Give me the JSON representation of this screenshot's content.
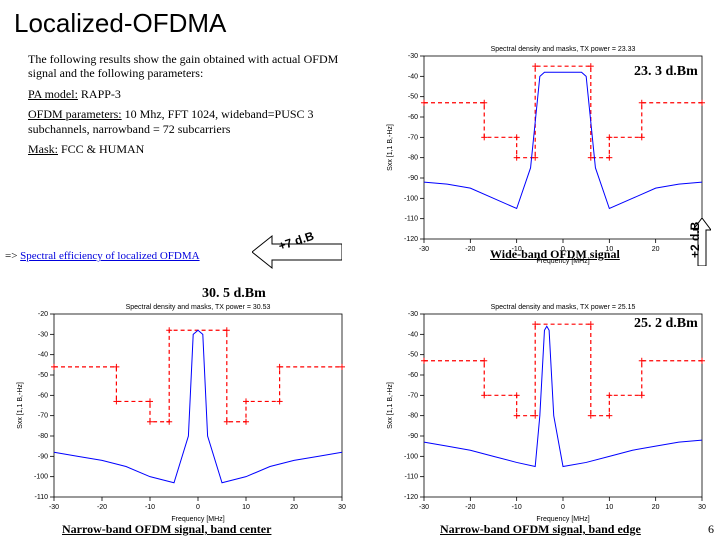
{
  "title": "Localized-OFDMA",
  "intro": {
    "lead": "The following results show the gain obtained with actual OFDM signal and the following parameters:",
    "pa": {
      "label": "PA model:",
      "value": "RAPP-3"
    },
    "ofdm": {
      "label": "OFDM parameters:",
      "value": "10 Mhz, FFT 1024, wideband=PUSC 3 subchannels, narrowband = 72 subcarriers"
    },
    "mask": {
      "label": "Mask:",
      "value": "FCC & HUMAN"
    }
  },
  "link": {
    "prefix": "=> ",
    "text": "Spectral efficiency of localized OFDMA"
  },
  "annotations": {
    "tr": "23. 3 d.Bm",
    "bl": "30. 5 d.Bm",
    "br": "25. 2 d.Bm",
    "arrow_h": "+7 d.B",
    "arrow_v": "+2 d.B"
  },
  "captions": {
    "tr": "Wide-band OFDM signal",
    "bl": "Narrow-band OFDM signal, band center",
    "br": "Narrow-band OFDM signal, band edge"
  },
  "page_number": "6",
  "chart_style": {
    "type": "line",
    "line_color": "#0000ff",
    "mask_color": "#ff0000",
    "mask_dash": "4 3",
    "axis_color": "#000000",
    "grid_color": "#000000",
    "background": "#ffffff",
    "xlabel": "Frequency [MHz]",
    "ylabel": "Sxx [1,1 B,-Hz]",
    "xlim": [
      -30,
      30
    ],
    "xtick_step": 10,
    "axis_fontsize": 7,
    "title_fontsize": 7
  },
  "charts": {
    "tr": {
      "title": "Spectral density and masks, TX power = 23.33",
      "ylim": [
        -120,
        -30
      ],
      "ytick_step": 10,
      "signal": [
        [
          -30,
          -92
        ],
        [
          -25,
          -93
        ],
        [
          -20,
          -95
        ],
        [
          -15,
          -100
        ],
        [
          -10,
          -105
        ],
        [
          -7,
          -85
        ],
        [
          -5,
          -40
        ],
        [
          -4,
          -38
        ],
        [
          0,
          -38
        ],
        [
          4,
          -38
        ],
        [
          5,
          -40
        ],
        [
          7,
          -85
        ],
        [
          10,
          -105
        ],
        [
          15,
          -100
        ],
        [
          20,
          -95
        ],
        [
          25,
          -93
        ],
        [
          30,
          -92
        ]
      ],
      "mask": [
        [
          -30,
          -53
        ],
        [
          -17,
          -53
        ],
        [
          -17,
          -70
        ],
        [
          -10,
          -70
        ],
        [
          -10,
          -80
        ],
        [
          -6,
          -80
        ],
        [
          -6,
          -35
        ],
        [
          6,
          -35
        ],
        [
          6,
          -80
        ],
        [
          10,
          -80
        ],
        [
          10,
          -70
        ],
        [
          17,
          -70
        ],
        [
          17,
          -53
        ],
        [
          30,
          -53
        ]
      ]
    },
    "bl": {
      "title": "Spectral density and masks, TX power = 30.53",
      "ylim": [
        -110,
        -20
      ],
      "ytick_step": 10,
      "signal": [
        [
          -30,
          -88
        ],
        [
          -25,
          -90
        ],
        [
          -20,
          -92
        ],
        [
          -15,
          -95
        ],
        [
          -10,
          -100
        ],
        [
          -5,
          -103
        ],
        [
          -2,
          -80
        ],
        [
          -1,
          -30
        ],
        [
          0,
          -28
        ],
        [
          1,
          -30
        ],
        [
          2,
          -80
        ],
        [
          5,
          -103
        ],
        [
          10,
          -100
        ],
        [
          15,
          -95
        ],
        [
          20,
          -92
        ],
        [
          25,
          -90
        ],
        [
          30,
          -88
        ]
      ],
      "mask": [
        [
          -30,
          -46
        ],
        [
          -17,
          -46
        ],
        [
          -17,
          -63
        ],
        [
          -10,
          -63
        ],
        [
          -10,
          -73
        ],
        [
          -6,
          -73
        ],
        [
          -6,
          -28
        ],
        [
          6,
          -28
        ],
        [
          6,
          -73
        ],
        [
          10,
          -73
        ],
        [
          10,
          -63
        ],
        [
          17,
          -63
        ],
        [
          17,
          -46
        ],
        [
          30,
          -46
        ]
      ]
    },
    "br": {
      "title": "Spectral density and masks, TX power = 25.15",
      "ylim": [
        -120,
        -30
      ],
      "ytick_step": 10,
      "signal": [
        [
          -30,
          -93
        ],
        [
          -25,
          -95
        ],
        [
          -20,
          -97
        ],
        [
          -15,
          -100
        ],
        [
          -10,
          -103
        ],
        [
          -6,
          -105
        ],
        [
          -5,
          -80
        ],
        [
          -4,
          -38
        ],
        [
          -3.5,
          -36
        ],
        [
          -3,
          -38
        ],
        [
          -2,
          -80
        ],
        [
          0,
          -105
        ],
        [
          5,
          -103
        ],
        [
          10,
          -100
        ],
        [
          15,
          -97
        ],
        [
          20,
          -95
        ],
        [
          25,
          -93
        ],
        [
          30,
          -92
        ]
      ],
      "mask": [
        [
          -30,
          -53
        ],
        [
          -17,
          -53
        ],
        [
          -17,
          -70
        ],
        [
          -10,
          -70
        ],
        [
          -10,
          -80
        ],
        [
          -6,
          -80
        ],
        [
          -6,
          -35
        ],
        [
          6,
          -35
        ],
        [
          6,
          -80
        ],
        [
          10,
          -80
        ],
        [
          10,
          -70
        ],
        [
          17,
          -70
        ],
        [
          17,
          -53
        ],
        [
          30,
          -53
        ]
      ]
    }
  }
}
